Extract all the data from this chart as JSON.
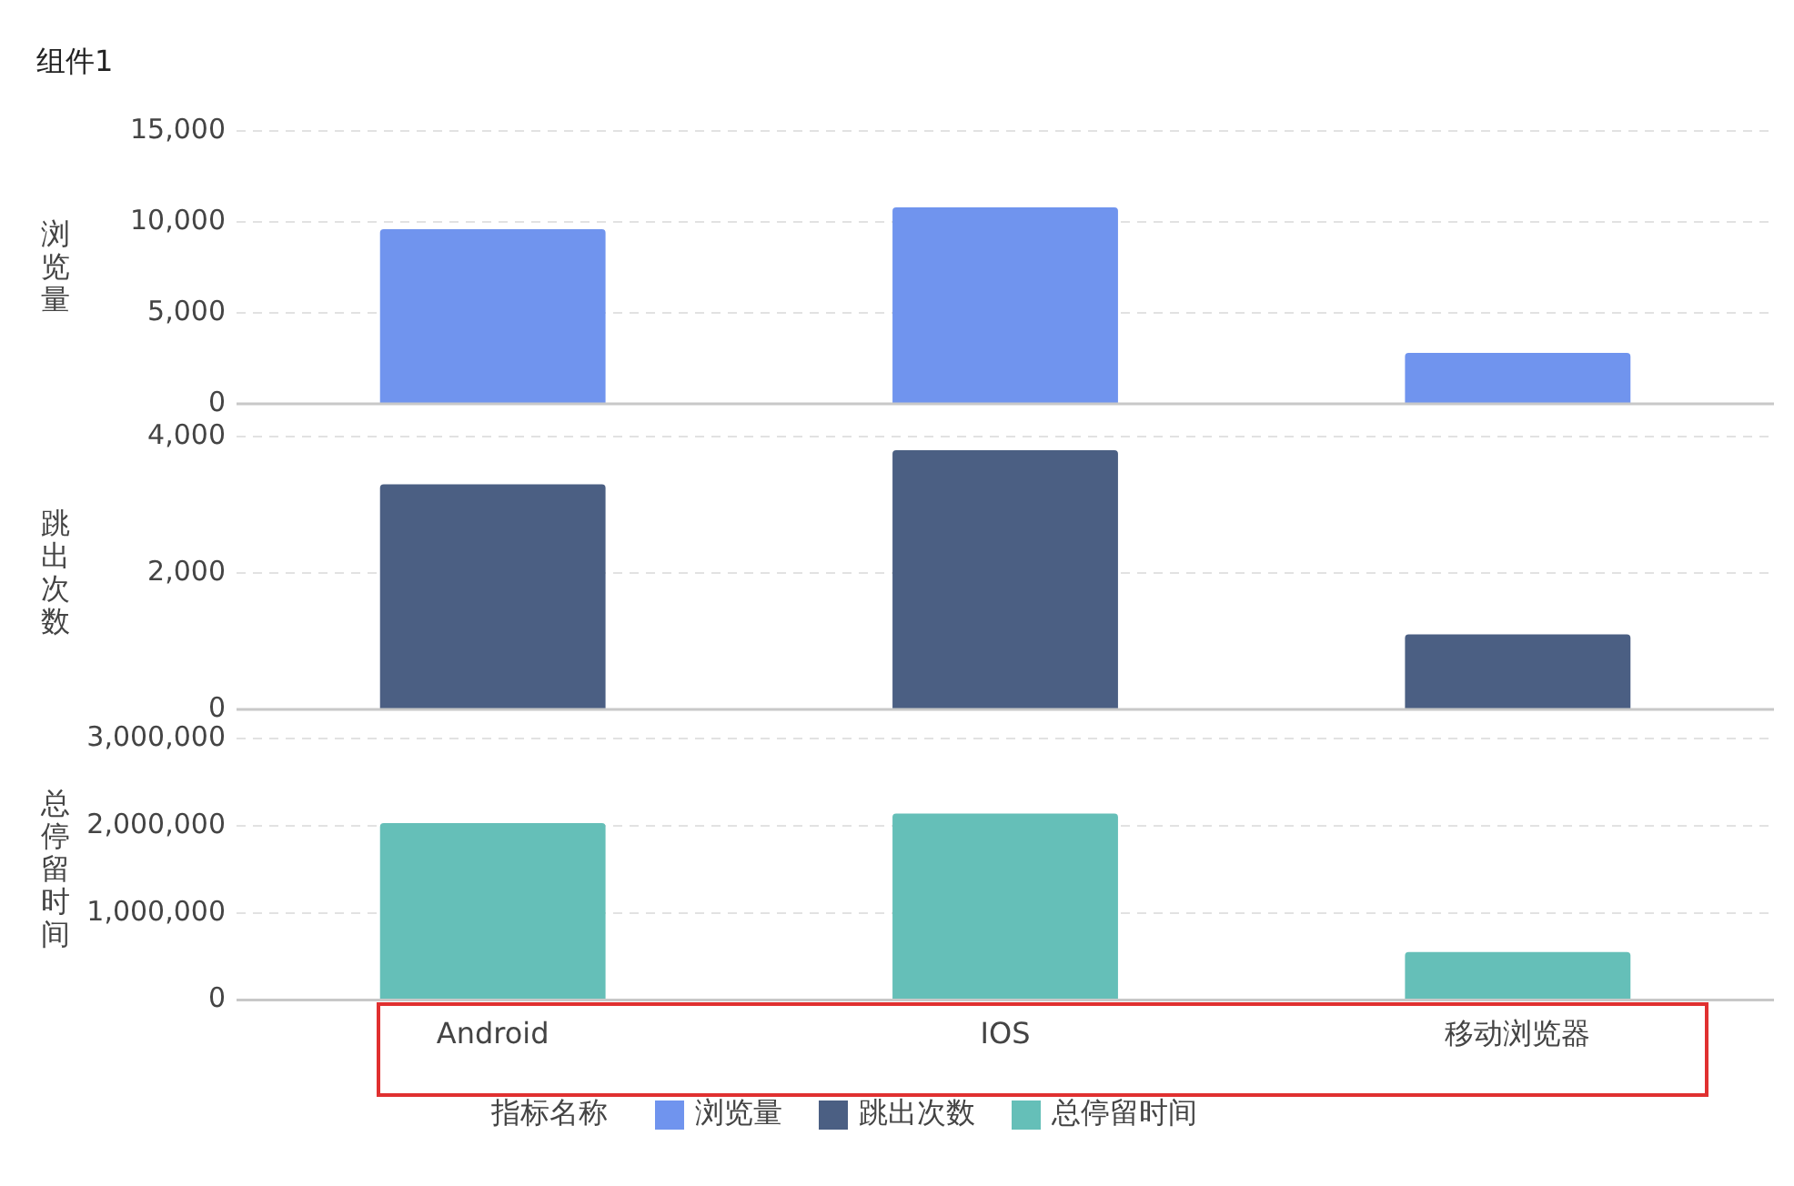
{
  "chart_data": [
    {
      "type": "bar",
      "title": "组件1",
      "categories": [
        null,
        null,
        null
      ],
      "series": [
        {
          "name": "浏览量",
          "color": "#7094ee",
          "values": [
            9600,
            10800,
            2800
          ]
        }
      ],
      "ylabel": "浏览量",
      "ylim": [
        0,
        15000
      ],
      "yticks": [
        {
          "value": 0,
          "label": "0"
        },
        {
          "value": 5000,
          "label": "5,000"
        },
        {
          "value": 10000,
          "label": "10,000"
        },
        {
          "value": 15000,
          "label": "15,000"
        }
      ],
      "grid": "y",
      "legend": "bottom",
      "tick_labels": "y"
    },
    {
      "type": "bar",
      "categories": [
        null,
        null,
        null
      ],
      "series": [
        {
          "name": "跳出次数",
          "color": "#4b5f83",
          "values": [
            3300,
            3800,
            1100
          ]
        }
      ],
      "ylabel": "跳出次数",
      "ylim": [
        0,
        4000
      ],
      "yticks": [
        {
          "value": 0,
          "label": "0"
        },
        {
          "value": 2000,
          "label": "2,000"
        },
        {
          "value": 4000,
          "label": "4,000"
        }
      ],
      "grid": "y",
      "legend": "bottom",
      "tick_labels": "y"
    },
    {
      "type": "bar",
      "categories": [
        "Android",
        "IOS",
        "移动浏览器"
      ],
      "series": [
        {
          "name": "总停留时间",
          "color": "#65bfb8",
          "values": [
            2030000,
            2140000,
            550000
          ]
        }
      ],
      "ylabel": "总停留时间",
      "ylim": [
        0,
        3000000
      ],
      "yticks": [
        {
          "value": 0,
          "label": "0"
        },
        {
          "value": 1000000,
          "label": "1,000,000"
        },
        {
          "value": 2000000,
          "label": "2,000,000"
        },
        {
          "value": 3000000,
          "label": "3,000,000"
        }
      ],
      "grid": "y",
      "legend": "bottom",
      "legend_title": "指标名称"
    }
  ]
}
